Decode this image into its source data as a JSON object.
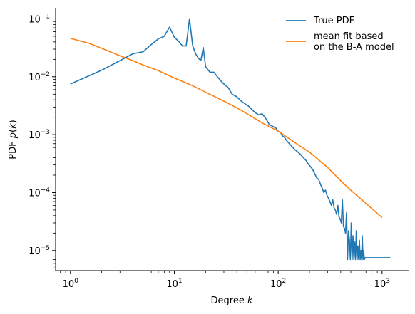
{
  "chart_data": {
    "type": "line",
    "xlabel": "Degree k",
    "ylabel": "PDF p(k)",
    "x_scale": "log",
    "y_scale": "log",
    "xlim": [
      0.72,
      1800
    ],
    "ylim": [
      4.5e-06,
      0.155
    ],
    "grid": false,
    "legend_position": "top-right",
    "x_ticks": [
      {
        "value": 1,
        "base": "10",
        "exp": "0"
      },
      {
        "value": 10,
        "base": "10",
        "exp": "1"
      },
      {
        "value": 100,
        "base": "10",
        "exp": "2"
      },
      {
        "value": 1000,
        "base": "10",
        "exp": "3"
      }
    ],
    "y_ticks": [
      {
        "value": 1e-05,
        "base": "10",
        "exp": "−5"
      },
      {
        "value": 0.0001,
        "base": "10",
        "exp": "−4"
      },
      {
        "value": 0.001,
        "base": "10",
        "exp": "−3"
      },
      {
        "value": 0.01,
        "base": "10",
        "exp": "−2"
      },
      {
        "value": 0.1,
        "base": "10",
        "exp": "−1"
      }
    ],
    "series": [
      {
        "name": "True PDF",
        "color": "#1f77b4",
        "x": [
          1,
          2,
          3,
          4,
          5,
          6,
          7,
          8,
          9,
          10,
          11,
          12,
          13,
          14,
          15,
          16,
          17,
          18,
          19,
          20,
          22,
          24,
          26,
          28,
          30,
          33,
          36,
          40,
          44,
          48,
          52,
          56,
          60,
          65,
          70,
          76,
          82,
          88,
          95,
          100,
          105,
          110,
          115,
          120,
          128,
          136,
          145,
          155,
          165,
          175,
          185,
          195,
          205,
          215,
          225,
          235,
          245,
          255,
          265,
          275,
          285,
          295,
          305,
          315,
          325,
          335,
          345,
          355,
          365,
          375,
          385,
          395,
          405,
          415,
          425,
          435,
          445,
          455,
          465,
          475,
          485,
          495,
          505,
          515,
          525,
          535,
          545,
          555,
          565,
          575,
          585,
          595,
          605,
          615,
          625,
          635,
          645,
          655,
          665,
          675,
          690,
          720,
          760,
          800,
          850,
          900,
          950,
          1000,
          1100,
          1200
        ],
        "y": [
          0.0075,
          0.013,
          0.019,
          0.025,
          0.027,
          0.036,
          0.045,
          0.05,
          0.072,
          0.048,
          0.041,
          0.034,
          0.034,
          0.1,
          0.035,
          0.025,
          0.021,
          0.019,
          0.032,
          0.015,
          0.012,
          0.012,
          0.01,
          0.0085,
          0.0075,
          0.0065,
          0.005,
          0.0045,
          0.0038,
          0.0034,
          0.0031,
          0.0027,
          0.0024,
          0.0022,
          0.0023,
          0.0019,
          0.0015,
          0.0014,
          0.0013,
          0.00115,
          0.0011,
          0.00095,
          0.0009,
          0.0008,
          0.0007,
          0.00062,
          0.00055,
          0.0005,
          0.00045,
          0.0004,
          0.00036,
          0.00031,
          0.00028,
          0.00025,
          0.00021,
          0.00018,
          0.00017,
          0.00014,
          0.00012,
          0.0001,
          0.00011,
          9e-05,
          8e-05,
          7e-05,
          6e-05,
          7.5e-05,
          5.5e-05,
          5e-05,
          4.2e-05,
          6e-05,
          3.8e-05,
          3.5e-05,
          3e-05,
          7.5e-05,
          2.6e-05,
          2.4e-05,
          2e-05,
          4.5e-05,
          7e-06,
          2.2e-05,
          1.5e-05,
          7e-06,
          3e-05,
          7e-06,
          1.8e-05,
          7e-06,
          1.4e-05,
          7e-06,
          2.2e-05,
          7e-06,
          1.2e-05,
          7e-06,
          1.5e-05,
          7e-06,
          1e-05,
          7e-06,
          1.8e-05,
          7e-06,
          1e-05,
          7e-06,
          7.5e-06,
          7.5e-06,
          7.5e-06,
          7.5e-06,
          7.5e-06,
          7.5e-06,
          7.5e-06,
          7.5e-06,
          7.5e-06,
          7.5e-06
        ]
      },
      {
        "name": "mean fit based on the B-A model",
        "name_lines": [
          "mean fit based",
          "on the B-A model"
        ],
        "color": "#ff7f0e",
        "x": [
          1,
          1.5,
          2,
          3,
          4,
          5,
          7,
          10,
          15,
          20,
          30,
          40,
          50,
          70,
          100,
          150,
          200,
          300,
          400,
          500,
          700,
          1000
        ],
        "y": [
          0.046,
          0.038,
          0.031,
          0.023,
          0.019,
          0.016,
          0.0128,
          0.0095,
          0.007,
          0.0054,
          0.0038,
          0.0029,
          0.0023,
          0.0016,
          0.00115,
          0.0007,
          0.0005,
          0.00027,
          0.00016,
          0.00011,
          6.5e-05,
          3.7e-05
        ]
      }
    ]
  }
}
